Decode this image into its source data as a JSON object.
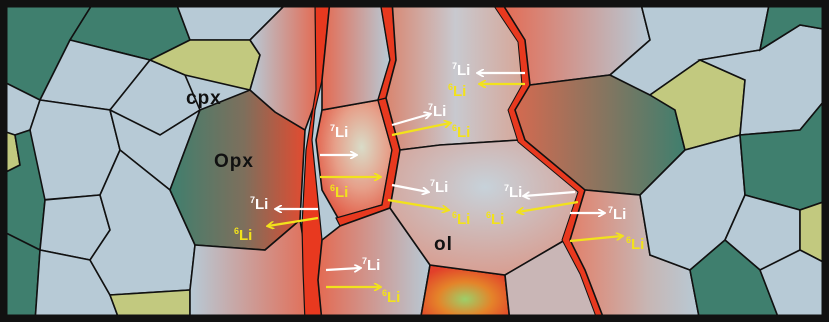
{
  "diagram": {
    "minerals": {
      "cpx": "cpx",
      "opx": "Opx",
      "ol": "ol"
    },
    "isotopes": {
      "li7": {
        "mass": "7",
        "symbol": "Li"
      },
      "li6": {
        "mass": "6",
        "symbol": "Li"
      }
    }
  },
  "colors": {
    "olivine": "#b7cad6",
    "orthopyroxene": "#3f7f6e",
    "clinopyroxene": "#c2c97f",
    "melt_channel": "#e8391f",
    "reaction_zone": "#e0705a",
    "boundary": "#111111",
    "li7_arrow": "#ffffff",
    "li6_arrow": "#f2e21c"
  }
}
